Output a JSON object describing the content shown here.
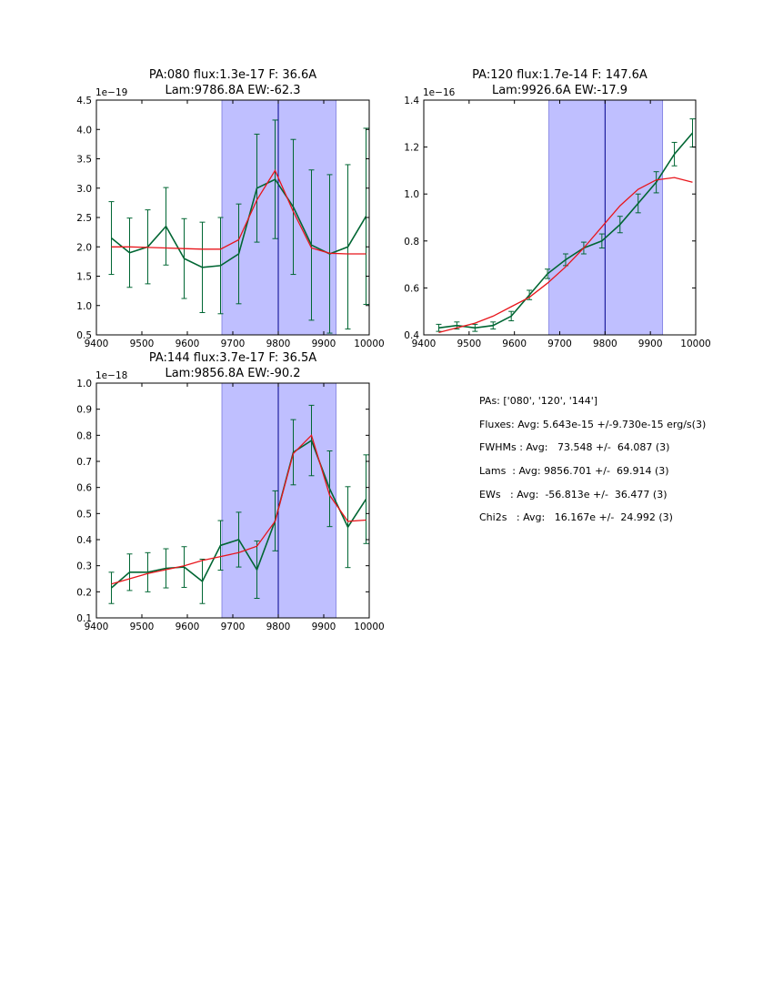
{
  "chart_data": [
    {
      "type": "line",
      "title_lines": [
        "PA:080 flux:1.3e-17 F: 36.6A",
        "Lam:9786.8A EW:-62.3"
      ],
      "offset_label": "1e−19",
      "xlim": [
        9400,
        10000
      ],
      "ylim": [
        0.5,
        4.5
      ],
      "xticks": [
        "9400",
        "9500",
        "9600",
        "9700",
        "9800",
        "9900",
        "10000"
      ],
      "xtick_values": [
        9400,
        9500,
        9600,
        9700,
        9800,
        9900,
        10000
      ],
      "yticks": [
        "0.5",
        "1.0",
        "1.5",
        "2.0",
        "2.5",
        "3.0",
        "3.5",
        "4.0",
        "4.5"
      ],
      "ytick_values": [
        0.5,
        1.0,
        1.5,
        2.0,
        2.5,
        3.0,
        3.5,
        4.0,
        4.5
      ],
      "span": [
        9676,
        9927
      ],
      "vline": 9800,
      "series": [
        {
          "name": "data",
          "color": "#006633",
          "x": [
            9433,
            9473,
            9513,
            9553,
            9593,
            9633,
            9673,
            9713,
            9753,
            9793,
            9833,
            9873,
            9913,
            9953,
            9993
          ],
          "values": [
            2.15,
            1.9,
            2.0,
            2.35,
            1.8,
            1.65,
            1.68,
            1.88,
            3.0,
            3.15,
            2.68,
            2.03,
            1.88,
            2.0,
            2.52
          ],
          "errors": [
            0.62,
            0.59,
            0.63,
            0.66,
            0.68,
            0.77,
            0.82,
            0.85,
            0.92,
            1.01,
            1.15,
            1.28,
            1.35,
            1.4,
            1.5
          ]
        },
        {
          "name": "fit",
          "color": "#e8151b",
          "x": [
            9433,
            9473,
            9513,
            9553,
            9593,
            9633,
            9673,
            9713,
            9753,
            9793,
            9833,
            9873,
            9913,
            9953,
            9993
          ],
          "values": [
            2.0,
            2.0,
            1.99,
            1.98,
            1.97,
            1.96,
            1.96,
            2.12,
            2.8,
            3.3,
            2.6,
            1.98,
            1.89,
            1.88,
            1.88
          ]
        }
      ]
    },
    {
      "type": "line",
      "title_lines": [
        "PA:120 flux:1.7e-14 F: 147.6A",
        "Lam:9926.6A EW:-17.9"
      ],
      "offset_label": "1e−16",
      "xlim": [
        9400,
        10000
      ],
      "ylim": [
        0.4,
        1.4
      ],
      "xticks": [
        "9400",
        "9500",
        "9600",
        "9700",
        "9800",
        "9900",
        "10000"
      ],
      "xtick_values": [
        9400,
        9500,
        9600,
        9700,
        9800,
        9900,
        10000
      ],
      "yticks": [
        "0.4",
        "0.6",
        "0.8",
        "1.0",
        "1.2",
        "1.4"
      ],
      "ytick_values": [
        0.4,
        0.6,
        0.8,
        1.0,
        1.2,
        1.4
      ],
      "span": [
        9676,
        9927
      ],
      "vline": 9800,
      "series": [
        {
          "name": "data",
          "color": "#006633",
          "x": [
            9433,
            9473,
            9513,
            9553,
            9593,
            9633,
            9673,
            9713,
            9753,
            9793,
            9833,
            9873,
            9913,
            9953,
            9993
          ],
          "values": [
            0.43,
            0.44,
            0.43,
            0.44,
            0.48,
            0.57,
            0.66,
            0.72,
            0.77,
            0.8,
            0.87,
            0.96,
            1.05,
            1.17,
            1.26
          ],
          "errors": [
            0.015,
            0.015,
            0.015,
            0.015,
            0.02,
            0.02,
            0.02,
            0.025,
            0.025,
            0.03,
            0.035,
            0.04,
            0.045,
            0.05,
            0.06
          ]
        },
        {
          "name": "fit",
          "color": "#e8151b",
          "x": [
            9433,
            9473,
            9513,
            9553,
            9593,
            9633,
            9673,
            9713,
            9753,
            9793,
            9833,
            9873,
            9913,
            9953,
            9993
          ],
          "values": [
            0.41,
            0.43,
            0.45,
            0.48,
            0.52,
            0.56,
            0.62,
            0.69,
            0.77,
            0.86,
            0.95,
            1.02,
            1.06,
            1.07,
            1.05
          ]
        }
      ]
    },
    {
      "type": "line",
      "title_lines": [
        "PA:144 flux:3.7e-17 F: 36.5A",
        "Lam:9856.8A EW:-90.2"
      ],
      "offset_label": "1e−18",
      "xlim": [
        9400,
        10000
      ],
      "ylim": [
        0.1,
        1.0
      ],
      "xticks": [
        "9400",
        "9500",
        "9600",
        "9700",
        "9800",
        "9900",
        "10000"
      ],
      "xtick_values": [
        9400,
        9500,
        9600,
        9700,
        9800,
        9900,
        10000
      ],
      "yticks": [
        "0.1",
        "0.2",
        "0.3",
        "0.4",
        "0.5",
        "0.6",
        "0.7",
        "0.8",
        "0.9",
        "1.0"
      ],
      "ytick_values": [
        0.1,
        0.2,
        0.3,
        0.4,
        0.5,
        0.6,
        0.7,
        0.8,
        0.9,
        1.0
      ],
      "span": [
        9676,
        9927
      ],
      "vline": 9800,
      "series": [
        {
          "name": "data",
          "color": "#006633",
          "x": [
            9433,
            9473,
            9513,
            9553,
            9593,
            9633,
            9673,
            9713,
            9753,
            9793,
            9833,
            9873,
            9913,
            9953,
            9993
          ],
          "values": [
            0.215,
            0.275,
            0.275,
            0.29,
            0.295,
            0.24,
            0.378,
            0.4,
            0.285,
            0.472,
            0.735,
            0.78,
            0.595,
            0.448,
            0.555
          ],
          "errors": [
            0.06,
            0.07,
            0.075,
            0.075,
            0.078,
            0.085,
            0.095,
            0.105,
            0.11,
            0.115,
            0.125,
            0.135,
            0.145,
            0.155,
            0.17
          ]
        },
        {
          "name": "fit",
          "color": "#e8151b",
          "x": [
            9433,
            9473,
            9513,
            9553,
            9593,
            9633,
            9673,
            9713,
            9753,
            9793,
            9833,
            9873,
            9913,
            9953,
            9993
          ],
          "values": [
            0.23,
            0.25,
            0.27,
            0.285,
            0.3,
            0.32,
            0.335,
            0.35,
            0.375,
            0.47,
            0.73,
            0.8,
            0.57,
            0.47,
            0.475
          ]
        }
      ]
    }
  ],
  "summary": {
    "pas": "PAs: ['080', '120', '144']",
    "fluxes": "Fluxes: Avg: 5.643e-15 +/-9.730e-15 erg/s(3)",
    "fwhms": "FWHMs : Avg:   73.548 +/-  64.087 (3)",
    "lams": "Lams  : Avg: 9856.701 +/-  69.914 (3)",
    "ews": "EWs   : Avg:  -56.813e +/-  36.477 (3)",
    "chi2s": "Chi2s   : Avg:   16.167e +/-  24.992 (3)"
  },
  "colors": {
    "span_fill": "#bfbfff",
    "span_edge": "#7b7be0",
    "vline": "#00008b",
    "axes": "#000000"
  }
}
